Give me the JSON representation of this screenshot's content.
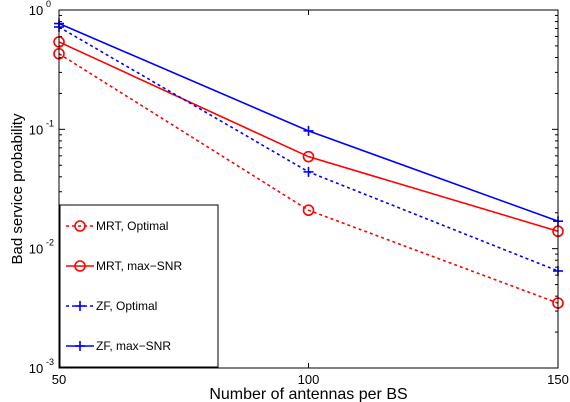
{
  "chart_data": {
    "type": "line",
    "title": "",
    "xlabel": "Number of antennas per BS",
    "ylabel": "Bad service probability",
    "x": [
      50,
      100,
      150
    ],
    "xlim": [
      50,
      150
    ],
    "ylim": [
      0.001,
      1
    ],
    "yscale": "log",
    "grid": false,
    "legend_position": "bottom-left",
    "x_ticks": [
      "50",
      "100",
      "150"
    ],
    "y_ticks": [
      {
        "base": "10",
        "exp": "-3",
        "value": 0.001
      },
      {
        "base": "10",
        "exp": "-2",
        "value": 0.01
      },
      {
        "base": "10",
        "exp": "-1",
        "value": 0.1
      },
      {
        "base": "10",
        "exp": "0",
        "value": 1
      }
    ],
    "series": [
      {
        "name": "MRT, Optimal",
        "values": [
          0.43,
          0.021,
          0.0035
        ],
        "color": "#ff0000",
        "dash": true,
        "marker": "circle"
      },
      {
        "name": "MRT, max−SNR",
        "values": [
          0.54,
          0.059,
          0.014
        ],
        "color": "#ff0000",
        "dash": false,
        "marker": "circle"
      },
      {
        "name": "ZF, Optimal",
        "values": [
          0.72,
          0.044,
          0.0065
        ],
        "color": "#0000ff",
        "dash": true,
        "marker": "plus"
      },
      {
        "name": "ZF, max−SNR",
        "values": [
          0.77,
          0.097,
          0.017
        ],
        "color": "#0000ff",
        "dash": false,
        "marker": "plus"
      }
    ]
  }
}
